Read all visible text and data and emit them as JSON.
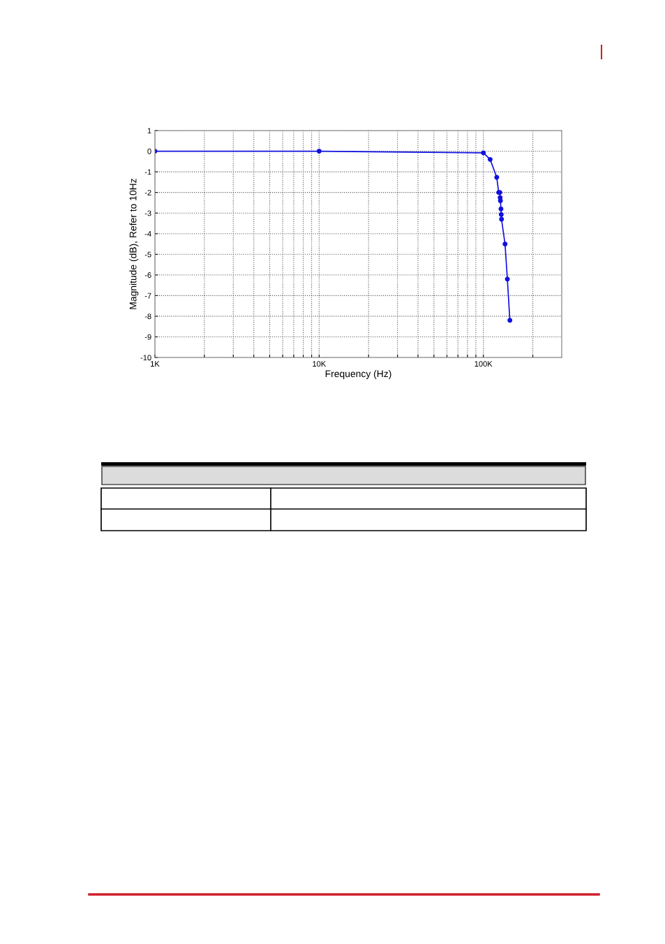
{
  "chart_data": {
    "type": "line",
    "xlabel": "Frequency (Hz)",
    "ylabel": "Magnitude (dB), Refer to 10Hz",
    "log": "x",
    "x": [
      1000,
      10000,
      100000,
      110000,
      120600,
      124000,
      126000,
      126500,
      127000,
      128000,
      128500,
      129000,
      135500,
      140000,
      145000
    ],
    "series": [
      {
        "color": "#1010e0",
        "values": [
          0,
          0,
          -0.08,
          -0.4,
          -1.27,
          -2.0,
          -2.0,
          -2.25,
          -2.4,
          -2.8,
          -3.07,
          -3.3,
          -4.5,
          -6.2,
          -8.2
        ]
      }
    ],
    "xlim": [
      1000,
      300000
    ],
    "xticks": [
      {
        "value": 1000,
        "label": "1K"
      },
      {
        "value": 2000,
        "label": null
      },
      {
        "value": 3000,
        "label": null
      },
      {
        "value": 4000,
        "label": null
      },
      {
        "value": 5000,
        "label": null
      },
      {
        "value": 6000,
        "label": null
      },
      {
        "value": 7000,
        "label": null
      },
      {
        "value": 8000,
        "label": null
      },
      {
        "value": 9000,
        "label": null
      },
      {
        "value": 10000,
        "label": "10K"
      },
      {
        "value": 20000,
        "label": null
      },
      {
        "value": 30000,
        "label": null
      },
      {
        "value": 40000,
        "label": null
      },
      {
        "value": 50000,
        "label": null
      },
      {
        "value": 60000,
        "label": null
      },
      {
        "value": 70000,
        "label": null
      },
      {
        "value": 80000,
        "label": null
      },
      {
        "value": 90000,
        "label": null
      },
      {
        "value": 100000,
        "label": "100K"
      },
      {
        "value": 200000,
        "label": null
      }
    ],
    "ylim": [
      -10,
      1
    ],
    "yticks": [
      -10,
      -9,
      -8,
      -7,
      -6,
      -5,
      -4,
      -3,
      -2,
      -1,
      0,
      1
    ],
    "grid": true,
    "marker": "circle",
    "line_style": "solid"
  }
}
